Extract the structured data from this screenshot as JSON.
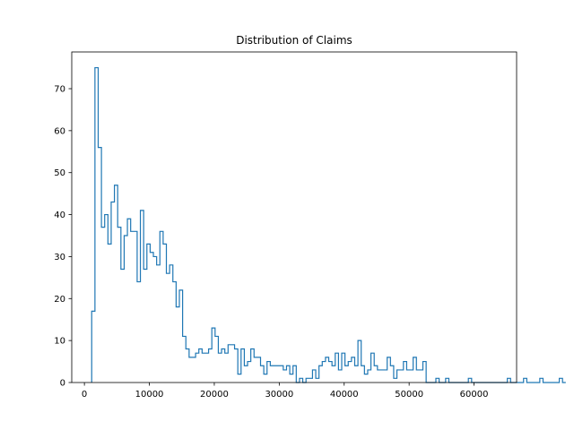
{
  "chart_data": {
    "type": "histogram",
    "title": "Distribution of Claims",
    "xlabel": "",
    "ylabel": "",
    "xlim": [
      -1950,
      66550
    ],
    "ylim": [
      0,
      78.75
    ],
    "x_ticks": [
      0,
      10000,
      20000,
      30000,
      40000,
      50000,
      60000
    ],
    "x_tick_labels": [
      "0",
      "10000",
      "20000",
      "30000",
      "40000",
      "50000",
      "60000"
    ],
    "y_ticks": [
      0,
      10,
      20,
      30,
      40,
      50,
      60,
      70
    ],
    "y_tick_labels": [
      "0",
      "10",
      "20",
      "30",
      "40",
      "50",
      "60",
      "70"
    ],
    "line_color": "#1f77b4",
    "grid": false,
    "bin_start": 1121,
    "bin_width": 500,
    "counts": [
      17,
      75,
      56,
      37,
      40,
      33,
      43,
      47,
      37,
      27,
      35,
      39,
      36,
      36,
      24,
      41,
      27,
      33,
      31,
      30,
      28,
      36,
      33,
      26,
      28,
      24,
      18,
      22,
      11,
      8,
      6,
      6,
      7,
      8,
      7,
      7,
      8,
      13,
      11,
      7,
      8,
      7,
      9,
      9,
      8,
      2,
      8,
      4,
      5,
      8,
      6,
      6,
      4,
      2,
      5,
      4,
      4,
      4,
      4,
      3,
      4,
      2,
      4,
      0,
      1,
      0,
      1,
      1,
      3,
      1,
      4,
      5,
      6,
      5,
      4,
      7,
      3,
      7,
      4,
      5,
      6,
      4,
      10,
      4,
      2,
      3,
      7,
      4,
      3,
      3,
      3,
      6,
      4,
      1,
      3,
      3,
      5,
      3,
      3,
      6,
      3,
      3,
      5,
      0,
      0,
      0,
      1,
      0,
      0,
      1,
      0,
      0,
      0,
      0,
      0,
      0,
      1,
      0,
      0,
      0,
      0,
      0,
      0,
      0,
      0,
      0,
      0,
      0,
      1,
      0,
      0,
      0,
      0,
      1,
      0,
      0,
      0,
      0,
      1,
      0,
      0,
      0,
      0,
      0,
      1,
      0
    ]
  }
}
